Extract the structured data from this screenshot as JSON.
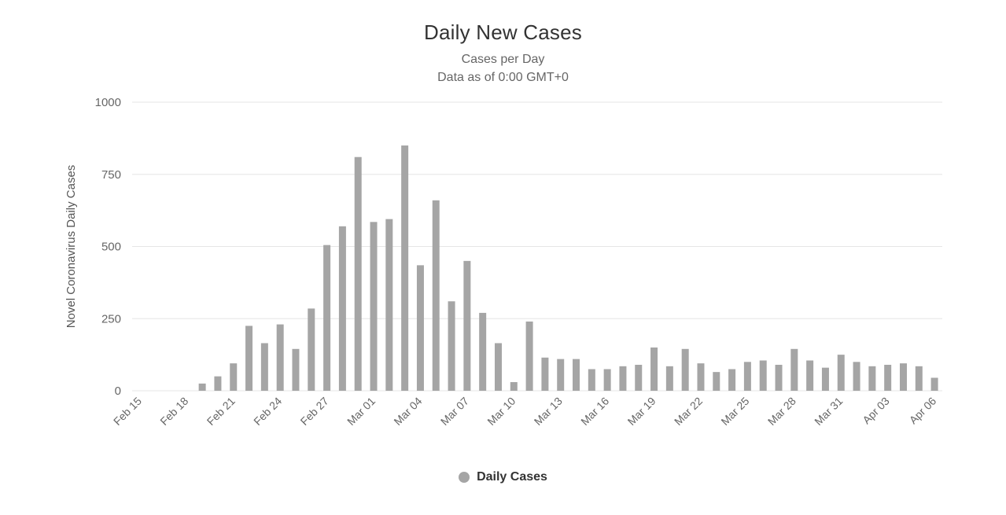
{
  "chart": {
    "title": "Daily New Cases",
    "subtitle_line1": "Cases per Day",
    "subtitle_line2": "Data as of 0:00 GMT+0",
    "legend_label": "Daily Cases"
  },
  "colors": {
    "background": "#ffffff",
    "title": "#333333",
    "subtitle": "#666666",
    "gridline": "#e6e6e6",
    "axis_tick_label": "#666666",
    "y_axis_title": "#555555",
    "bar": "#a5a5a5",
    "legend_marker": "#a5a5a5",
    "legend_text": "#333333"
  },
  "chart_data": {
    "type": "bar",
    "title": "Daily New Cases",
    "subtitle": [
      "Cases per Day",
      "Data as of 0:00 GMT+0"
    ],
    "xlabel": "",
    "ylabel": "Novel Coronavirus Daily Cases",
    "ylim": [
      0,
      1000
    ],
    "yticks": [
      0,
      250,
      500,
      750,
      1000
    ],
    "x_tick_interval": 3,
    "grid": "horizontal",
    "legend_position": "bottom-center",
    "series_name": "Daily Cases",
    "bar_color": "#a5a5a5",
    "categories": [
      "Feb 15",
      "Feb 16",
      "Feb 17",
      "Feb 18",
      "Feb 19",
      "Feb 20",
      "Feb 21",
      "Feb 22",
      "Feb 23",
      "Feb 24",
      "Feb 25",
      "Feb 26",
      "Feb 27",
      "Feb 28",
      "Feb 29",
      "Mar 01",
      "Mar 02",
      "Mar 03",
      "Mar 04",
      "Mar 05",
      "Mar 06",
      "Mar 07",
      "Mar 08",
      "Mar 09",
      "Mar 10",
      "Mar 11",
      "Mar 12",
      "Mar 13",
      "Mar 14",
      "Mar 15",
      "Mar 16",
      "Mar 17",
      "Mar 18",
      "Mar 19",
      "Mar 20",
      "Mar 21",
      "Mar 22",
      "Mar 23",
      "Mar 24",
      "Mar 25",
      "Mar 26",
      "Mar 27",
      "Mar 28",
      "Mar 29",
      "Mar 30",
      "Mar 31",
      "Apr 01",
      "Apr 02",
      "Apr 03",
      "Apr 04",
      "Apr 05",
      "Apr 06"
    ],
    "values": [
      0,
      0,
      0,
      0,
      25,
      50,
      95,
      225,
      165,
      230,
      145,
      285,
      505,
      570,
      810,
      585,
      595,
      850,
      435,
      660,
      310,
      450,
      270,
      165,
      30,
      240,
      115,
      110,
      110,
      75,
      75,
      85,
      90,
      150,
      85,
      145,
      95,
      65,
      75,
      100,
      105,
      90,
      145,
      105,
      80,
      125,
      100,
      85,
      90,
      95,
      85,
      45
    ]
  }
}
